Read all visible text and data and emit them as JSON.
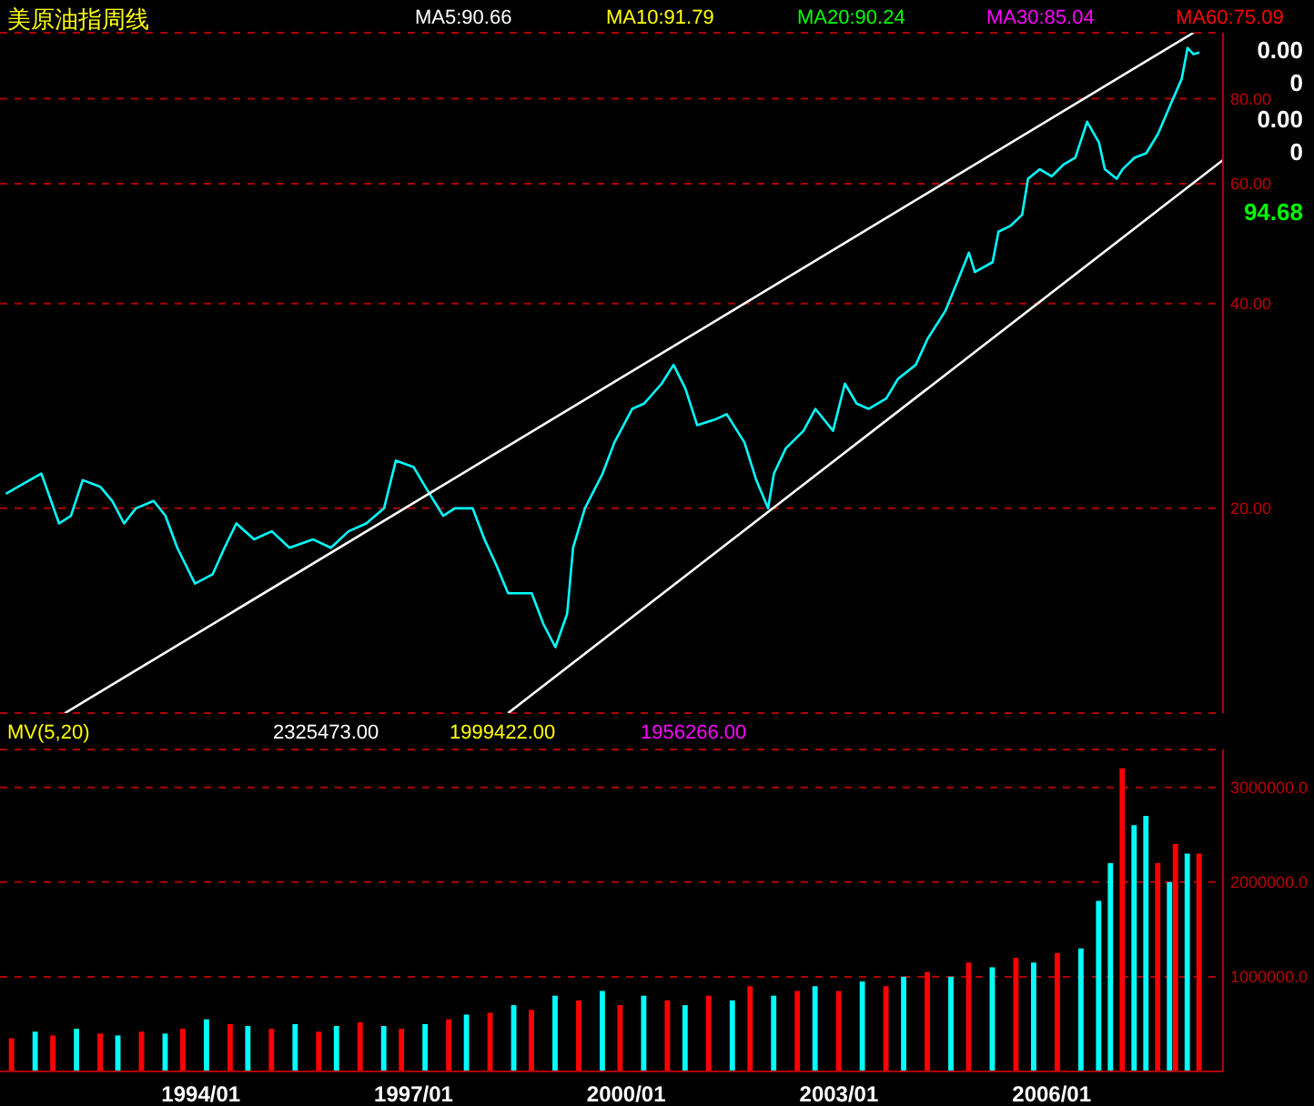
{
  "chart_data": [
    {
      "type": "line",
      "title": "美原油指周线",
      "annotations": [
        "MA5:90.66",
        "MA10:91.79",
        "MA20:90.24",
        "MA30:85.04",
        "MA60:75.09",
        "0.00",
        "0",
        "0.00",
        "0",
        "94.68"
      ],
      "series": [
        {
          "color": "#00ffff",
          "x": [
            "1991-04",
            "1991-06",
            "1991-10",
            "1992-01",
            "1992-03",
            "1992-05",
            "1992-08",
            "1992-10",
            "1992-12",
            "1993-02",
            "1993-05",
            "1993-07",
            "1993-09",
            "1993-12",
            "1994-03",
            "1994-05",
            "1994-07",
            "1994-10",
            "1995-01",
            "1995-04",
            "1995-08",
            "1995-11",
            "1996-02",
            "1996-05",
            "1996-08",
            "1996-10",
            "1997-01",
            "1997-03",
            "1997-06",
            "1997-08",
            "1997-11",
            "1998-01",
            "1998-03",
            "1998-05",
            "1998-09",
            "1998-11",
            "1999-01",
            "1999-03",
            "1999-04",
            "1999-06",
            "1999-09",
            "1999-11",
            "2000-02",
            "2000-04",
            "2000-07",
            "2000-09",
            "2000-11",
            "2001-01",
            "2001-04",
            "2001-06",
            "2001-09",
            "2001-11",
            "2002-01",
            "2002-02",
            "2002-04",
            "2002-07",
            "2002-09",
            "2002-12",
            "2003-02",
            "2003-04",
            "2003-06",
            "2003-09",
            "2003-11",
            "2004-02",
            "2004-04",
            "2004-07",
            "2004-09",
            "2004-11",
            "2004-12",
            "2005-03",
            "2005-04",
            "2005-06",
            "2005-08",
            "2005-09",
            "2005-11",
            "2006-01",
            "2006-03",
            "2006-05",
            "2006-07",
            "2006-09",
            "2006-10",
            "2006-12",
            "2007-01",
            "2007-03",
            "2007-05",
            "2007-07",
            "2007-09",
            "2007-11",
            "2007-12",
            "2008-01",
            "2008-02"
          ],
          "values": [
            21,
            21.5,
            22.5,
            19,
            19.5,
            22,
            21.5,
            20.5,
            19,
            20,
            20.5,
            19.5,
            17.5,
            15.5,
            16,
            17.5,
            19,
            18,
            18.5,
            17.5,
            18,
            17.5,
            18.5,
            19,
            20,
            23.5,
            23,
            21.5,
            19.5,
            20,
            20,
            18,
            16.5,
            15,
            15,
            13.5,
            12.5,
            14,
            17.5,
            20,
            22.5,
            25,
            28,
            28.5,
            30.5,
            32.5,
            30,
            26.5,
            27,
            27.5,
            25,
            22,
            20,
            22.5,
            24.5,
            26,
            28,
            26,
            30.5,
            28.5,
            28,
            29,
            31,
            32.5,
            35.5,
            39,
            43,
            47.5,
            44.5,
            46,
            51,
            52,
            54,
            61,
            63,
            61.5,
            64,
            65.5,
            74,
            69,
            63,
            61,
            63,
            65.5,
            66.5,
            71,
            78,
            85.5,
            95,
            93,
            93.5
          ]
        },
        {
          "color": "#ffffff",
          "x": [
            "1992-02",
            "2008-01"
          ],
          "values": [
            10,
            100
          ]
        },
        {
          "color": "#ffffff",
          "x": [
            "1998-05",
            "2008-06"
          ],
          "values": [
            10,
            65
          ]
        }
      ],
      "xlim": [
        "1991-03",
        "2008-06"
      ],
      "ylim": [
        10,
        100
      ],
      "log": true,
      "yticks": [
        {
          "value": 20,
          "label": "20.00"
        },
        {
          "value": 40,
          "label": "40.00"
        },
        {
          "value": 60,
          "label": "60.00"
        },
        {
          "value": 80,
          "label": "80.00"
        }
      ],
      "grid": "y",
      "marker": "none",
      "line_style": "solid",
      "tick_labels": "y"
    },
    {
      "type": "bar",
      "annotations": [
        "MV(5,20)",
        "2325473.00",
        "1999422.00",
        "1956266.00"
      ],
      "x": [
        "1991-05",
        "1991-09",
        "1991-12",
        "1992-04",
        "1992-08",
        "1992-11",
        "1993-03",
        "1993-07",
        "1993-10",
        "1994-02",
        "1994-06",
        "1994-09",
        "1995-01",
        "1995-05",
        "1995-09",
        "1995-12",
        "1996-04",
        "1996-08",
        "1996-11",
        "1997-03",
        "1997-07",
        "1997-10",
        "1998-02",
        "1998-06",
        "1998-09",
        "1999-01",
        "1999-05",
        "1999-09",
        "1999-12",
        "2000-04",
        "2000-08",
        "2000-11",
        "2001-03",
        "2001-07",
        "2001-10",
        "2002-02",
        "2002-06",
        "2002-09",
        "2003-01",
        "2003-05",
        "2003-09",
        "2003-12",
        "2004-04",
        "2004-08",
        "2004-11",
        "2005-03",
        "2005-07",
        "2005-10",
        "2006-02",
        "2006-06",
        "2006-09",
        "2006-11",
        "2007-01",
        "2007-03",
        "2007-05",
        "2007-07",
        "2007-09",
        "2007-10",
        "2007-12",
        "2008-02"
      ],
      "values": [
        350000,
        420000,
        380000,
        450000,
        400000,
        380000,
        420000,
        400000,
        450000,
        550000,
        500000,
        480000,
        450000,
        500000,
        420000,
        480000,
        520000,
        480000,
        450000,
        500000,
        550000,
        600000,
        620000,
        700000,
        650000,
        800000,
        750000,
        850000,
        700000,
        800000,
        750000,
        700000,
        800000,
        750000,
        900000,
        800000,
        850000,
        900000,
        850000,
        950000,
        900000,
        1000000,
        1050000,
        1000000,
        1150000,
        1100000,
        1200000,
        1150000,
        1250000,
        1300000,
        1800000,
        2200000,
        3200000,
        2600000,
        2700000,
        2200000,
        2000000,
        2400000,
        2300000,
        2300000
      ],
      "colors": [
        "#ff0000",
        "#00ffff",
        "#ff0000",
        "#00ffff",
        "#ff0000",
        "#00ffff",
        "#ff0000",
        "#00ffff",
        "#ff0000",
        "#00ffff",
        "#ff0000",
        "#00ffff",
        "#ff0000",
        "#00ffff",
        "#ff0000",
        "#00ffff",
        "#ff0000",
        "#00ffff",
        "#ff0000",
        "#00ffff",
        "#ff0000",
        "#00ffff",
        "#ff0000",
        "#00ffff",
        "#ff0000",
        "#00ffff",
        "#ff0000",
        "#00ffff",
        "#ff0000",
        "#00ffff",
        "#ff0000",
        "#00ffff",
        "#ff0000",
        "#00ffff",
        "#ff0000",
        "#00ffff",
        "#ff0000",
        "#00ffff",
        "#ff0000",
        "#00ffff",
        "#ff0000",
        "#00ffff",
        "#ff0000",
        "#00ffff",
        "#ff0000",
        "#00ffff",
        "#ff0000",
        "#00ffff",
        "#ff0000",
        "#00ffff",
        "#00ffff",
        "#00ffff",
        "#ff0000",
        "#00ffff",
        "#00ffff",
        "#ff0000",
        "#00ffff",
        "#ff0000",
        "#00ffff",
        "#ff0000"
      ],
      "xlim": [
        "1991-03",
        "2008-06"
      ],
      "ylim": [
        0,
        3400000
      ],
      "xticks": [
        {
          "value": "1994-01",
          "label": "1994/01"
        },
        {
          "value": "1997-01",
          "label": "1997/01"
        },
        {
          "value": "2000-01",
          "label": "2000/01"
        },
        {
          "value": "2003-01",
          "label": "2003/01"
        },
        {
          "value": "2006-01",
          "label": "2006/01"
        }
      ],
      "yticks": [
        {
          "value": 1000000,
          "label": "1000000.0"
        },
        {
          "value": 2000000,
          "label": "2000000.0"
        },
        {
          "value": 3000000,
          "label": "3000000.0"
        }
      ],
      "grid": "y"
    }
  ]
}
